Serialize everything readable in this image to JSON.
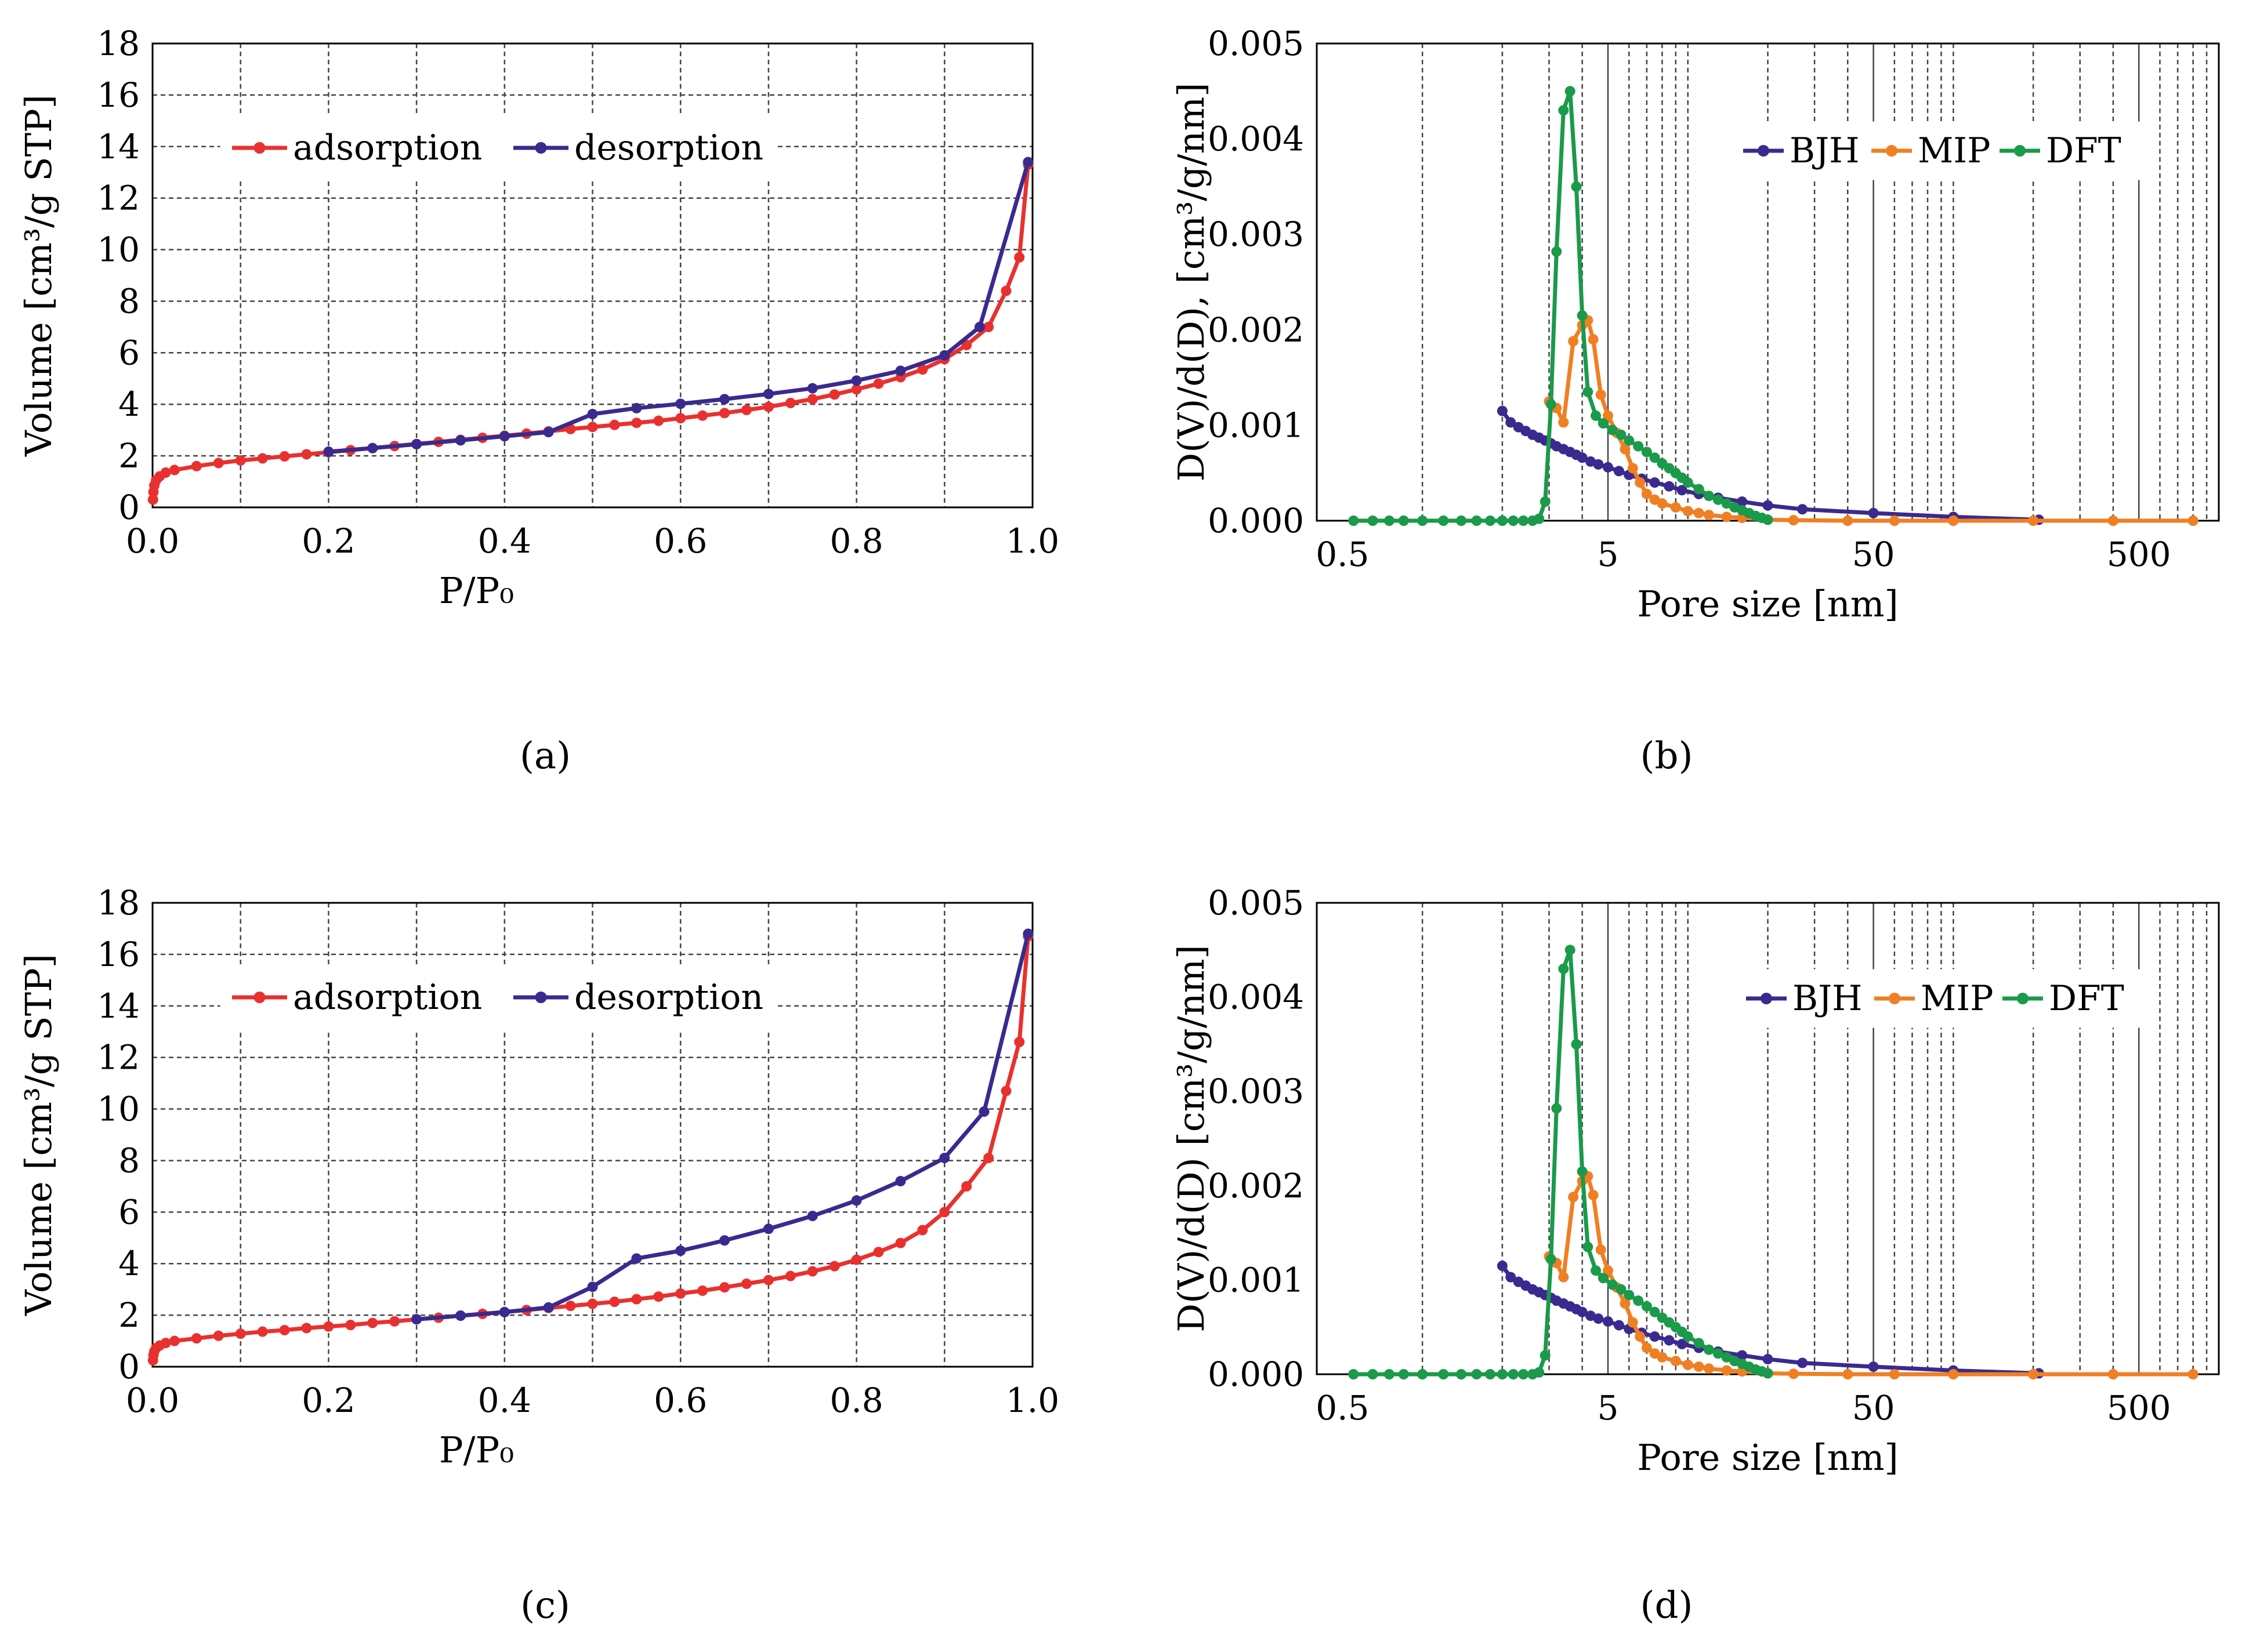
{
  "colors": {
    "adsorption": "#e8312f",
    "desorption": "#3a2a8f",
    "BJH": "#3a2a8f",
    "MIP": "#f07f24",
    "DFT": "#1a9a4a"
  },
  "chart_data": [
    {
      "panel": "a",
      "caption": "(a)",
      "type": "line",
      "xlabel": "P/P₀",
      "ylabel": "Volume [cm³/g STP]",
      "xlim": [
        0.0,
        1.0
      ],
      "ylim": [
        0,
        18
      ],
      "xticks": [
        "0.0",
        "0.2",
        "0.4",
        "0.6",
        "0.8",
        "1.0"
      ],
      "yticks": [
        "0",
        "2",
        "4",
        "6",
        "8",
        "10",
        "12",
        "14",
        "16",
        "18"
      ],
      "legend": [
        "adsorption",
        "desorption"
      ],
      "series": [
        {
          "name": "adsorption",
          "x": [
            0.0005,
            0.001,
            0.002,
            0.004,
            0.008,
            0.015,
            0.025,
            0.05,
            0.075,
            0.1,
            0.125,
            0.15,
            0.175,
            0.2,
            0.225,
            0.25,
            0.275,
            0.3,
            0.325,
            0.35,
            0.375,
            0.4,
            0.425,
            0.45,
            0.475,
            0.5,
            0.525,
            0.55,
            0.575,
            0.6,
            0.625,
            0.65,
            0.675,
            0.7,
            0.725,
            0.75,
            0.775,
            0.8,
            0.825,
            0.85,
            0.875,
            0.9,
            0.925,
            0.95,
            0.97,
            0.985,
            0.995
          ],
          "y": [
            0.3,
            0.6,
            0.85,
            1.05,
            1.2,
            1.35,
            1.45,
            1.6,
            1.72,
            1.82,
            1.9,
            1.98,
            2.06,
            2.14,
            2.22,
            2.3,
            2.38,
            2.46,
            2.54,
            2.62,
            2.7,
            2.78,
            2.86,
            2.95,
            3.04,
            3.12,
            3.2,
            3.28,
            3.36,
            3.46,
            3.56,
            3.66,
            3.78,
            3.9,
            4.05,
            4.2,
            4.38,
            4.58,
            4.8,
            5.05,
            5.35,
            5.75,
            6.3,
            7.0,
            8.4,
            9.7,
            13.3
          ]
        },
        {
          "name": "desorption",
          "x": [
            0.2,
            0.25,
            0.3,
            0.35,
            0.4,
            0.45,
            0.5,
            0.55,
            0.6,
            0.65,
            0.7,
            0.75,
            0.8,
            0.85,
            0.9,
            0.94,
            0.995
          ],
          "y": [
            2.16,
            2.3,
            2.45,
            2.6,
            2.76,
            2.92,
            3.62,
            3.85,
            4.02,
            4.2,
            4.4,
            4.62,
            4.92,
            5.3,
            5.9,
            7.0,
            13.4
          ]
        }
      ]
    },
    {
      "panel": "b",
      "caption": "(b)",
      "type": "line",
      "xscale": "log",
      "xlabel": "Pore size [nm]",
      "ylabel": "D(V)/d(D), [cm³/g/nm]",
      "xlim": [
        0.4,
        1000
      ],
      "ylim": [
        0,
        0.005
      ],
      "xticks": [
        "0.5",
        "5",
        "50",
        "500"
      ],
      "yticks": [
        "0.000",
        "0.001",
        "0.002",
        "0.003",
        "0.004",
        "0.005"
      ],
      "legend": [
        "BJH",
        "MIP",
        "DFT"
      ],
      "series": [
        {
          "name": "BJH",
          "x": [
            2.0,
            2.15,
            2.3,
            2.45,
            2.6,
            2.75,
            2.9,
            3.05,
            3.2,
            3.4,
            3.6,
            3.8,
            4.0,
            4.3,
            4.6,
            5.0,
            5.5,
            6.0,
            6.7,
            7.5,
            8.5,
            9.5,
            11,
            13,
            16,
            20,
            27,
            50,
            100,
            210
          ],
          "y": [
            0.00115,
            0.00103,
            0.00098,
            0.00094,
            0.0009,
            0.00087,
            0.00084,
            0.00081,
            0.00078,
            0.00075,
            0.00072,
            0.00069,
            0.00066,
            0.00062,
            0.00059,
            0.00056,
            0.00052,
            0.00048,
            0.00044,
            0.0004,
            0.00036,
            0.00032,
            0.00028,
            0.00024,
            0.0002,
            0.00016,
            0.00012,
            8e-05,
            4e-05,
            1e-05
          ]
        },
        {
          "name": "MIP",
          "x": [
            3.0,
            3.2,
            3.4,
            3.7,
            4.0,
            4.2,
            4.4,
            4.7,
            5.0,
            5.4,
            5.8,
            6.2,
            6.6,
            7.0,
            7.5,
            8.0,
            9.0,
            10,
            11,
            12,
            14,
            16,
            20,
            25,
            40,
            60,
            100,
            200,
            400,
            800
          ],
          "y": [
            0.00125,
            0.00118,
            0.00103,
            0.00188,
            0.00205,
            0.0021,
            0.0019,
            0.00132,
            0.0011,
            0.00092,
            0.00075,
            0.00055,
            0.0004,
            0.00028,
            0.00022,
            0.00018,
            0.00014,
            0.0001,
            8e-05,
            6e-05,
            4e-05,
            3e-05,
            1e-05,
            5e-06,
            0.0,
            0.0,
            0.0,
            0.0,
            0.0,
            0.0
          ]
        },
        {
          "name": "DFT",
          "x": [
            0.55,
            0.65,
            0.75,
            0.85,
            1.0,
            1.2,
            1.4,
            1.6,
            1.8,
            2.0,
            2.2,
            2.4,
            2.6,
            2.75,
            2.9,
            3.05,
            3.2,
            3.4,
            3.6,
            3.8,
            4.0,
            4.2,
            4.5,
            4.8,
            5.2,
            5.6,
            6.0,
            6.5,
            7.0,
            7.5,
            8.0,
            8.5,
            9.0,
            9.5,
            10,
            11,
            12,
            13,
            14,
            15,
            16,
            17,
            18,
            19,
            20
          ],
          "y": [
            0,
            0,
            0,
            0,
            0,
            0,
            0,
            0,
            0,
            0,
            0,
            0,
            0,
            2e-05,
            0.0002,
            0.00122,
            0.00282,
            0.0043,
            0.0045,
            0.0035,
            0.00215,
            0.00135,
            0.0011,
            0.00102,
            0.00095,
            0.0009,
            0.00084,
            0.00078,
            0.00072,
            0.00066,
            0.0006,
            0.00055,
            0.0005,
            0.00045,
            0.0004,
            0.00033,
            0.00026,
            0.00022,
            0.00018,
            0.00014,
            0.00011,
            8e-05,
            5e-05,
            3e-05,
            1e-05
          ]
        }
      ]
    },
    {
      "panel": "c",
      "caption": "(c)",
      "type": "line",
      "xlabel": "P/P₀",
      "ylabel": "Volume [cm³/g STP]",
      "xlim": [
        0.0,
        1.0
      ],
      "ylim": [
        0,
        18
      ],
      "xticks": [
        "0.0",
        "0.2",
        "0.4",
        "0.6",
        "0.8",
        "1.0"
      ],
      "yticks": [
        "0",
        "2",
        "4",
        "6",
        "8",
        "10",
        "12",
        "14",
        "16",
        "18"
      ],
      "legend": [
        "adsorption",
        "desorption"
      ],
      "series": [
        {
          "name": "adsorption",
          "x": [
            0.0005,
            0.001,
            0.002,
            0.004,
            0.008,
            0.015,
            0.025,
            0.05,
            0.075,
            0.1,
            0.125,
            0.15,
            0.175,
            0.2,
            0.225,
            0.25,
            0.275,
            0.3,
            0.325,
            0.35,
            0.375,
            0.4,
            0.425,
            0.45,
            0.475,
            0.5,
            0.525,
            0.55,
            0.575,
            0.6,
            0.625,
            0.65,
            0.675,
            0.7,
            0.725,
            0.75,
            0.775,
            0.8,
            0.825,
            0.85,
            0.875,
            0.9,
            0.925,
            0.95,
            0.97,
            0.985,
            0.995
          ],
          "y": [
            0.25,
            0.45,
            0.6,
            0.72,
            0.82,
            0.92,
            1.0,
            1.1,
            1.2,
            1.28,
            1.36,
            1.42,
            1.5,
            1.56,
            1.62,
            1.7,
            1.76,
            1.84,
            1.9,
            1.98,
            2.05,
            2.12,
            2.2,
            2.28,
            2.36,
            2.44,
            2.52,
            2.62,
            2.72,
            2.84,
            2.95,
            3.08,
            3.22,
            3.36,
            3.52,
            3.7,
            3.9,
            4.15,
            4.45,
            4.8,
            5.3,
            6.0,
            7.0,
            8.1,
            10.7,
            12.6,
            16.7
          ]
        },
        {
          "name": "desorption",
          "x": [
            0.3,
            0.35,
            0.4,
            0.45,
            0.5,
            0.55,
            0.6,
            0.65,
            0.7,
            0.75,
            0.8,
            0.85,
            0.9,
            0.945,
            0.995
          ],
          "y": [
            1.84,
            1.98,
            2.12,
            2.3,
            3.1,
            4.2,
            4.5,
            4.9,
            5.35,
            5.85,
            6.45,
            7.2,
            8.1,
            9.9,
            16.8
          ]
        }
      ]
    },
    {
      "panel": "d",
      "caption": "(d)",
      "type": "line",
      "xscale": "log",
      "xlabel": "Pore size [nm]",
      "ylabel": "D(V)/d(D) [cm³/g/nm]",
      "xlim": [
        0.4,
        1000
      ],
      "ylim": [
        0,
        0.005
      ],
      "xticks": [
        "0.5",
        "5",
        "50",
        "500"
      ],
      "yticks": [
        "0.000",
        "0.001",
        "0.002",
        "0.003",
        "0.004",
        "0.005"
      ],
      "legend": [
        "BJH",
        "MIP",
        "DFT"
      ],
      "series": [
        {
          "name": "BJH",
          "x": [
            2.0,
            2.15,
            2.3,
            2.45,
            2.6,
            2.75,
            2.9,
            3.05,
            3.2,
            3.4,
            3.6,
            3.8,
            4.0,
            4.3,
            4.6,
            5.0,
            5.5,
            6.0,
            6.7,
            7.5,
            8.5,
            9.5,
            11,
            13,
            16,
            20,
            27,
            50,
            100,
            210
          ],
          "y": [
            0.00115,
            0.00103,
            0.00098,
            0.00094,
            0.0009,
            0.00087,
            0.00084,
            0.00081,
            0.00078,
            0.00075,
            0.00072,
            0.00069,
            0.00066,
            0.00062,
            0.00059,
            0.00056,
            0.00052,
            0.00048,
            0.00044,
            0.0004,
            0.00036,
            0.00032,
            0.00028,
            0.00024,
            0.0002,
            0.00016,
            0.00012,
            8e-05,
            4e-05,
            1e-05
          ]
        },
        {
          "name": "MIP",
          "x": [
            3.0,
            3.2,
            3.4,
            3.7,
            4.0,
            4.2,
            4.4,
            4.7,
            5.0,
            5.4,
            5.8,
            6.2,
            6.6,
            7.0,
            7.5,
            8.0,
            9.0,
            10,
            11,
            12,
            14,
            16,
            20,
            25,
            40,
            60,
            100,
            200,
            400,
            800
          ],
          "y": [
            0.00125,
            0.00118,
            0.00103,
            0.00188,
            0.00205,
            0.0021,
            0.0019,
            0.00132,
            0.0011,
            0.00092,
            0.00075,
            0.00055,
            0.0004,
            0.00028,
            0.00022,
            0.00018,
            0.00014,
            0.0001,
            8e-05,
            6e-05,
            4e-05,
            3e-05,
            1e-05,
            5e-06,
            0.0,
            0.0,
            0.0,
            0.0,
            0.0,
            0.0
          ]
        },
        {
          "name": "DFT",
          "x": [
            0.55,
            0.65,
            0.75,
            0.85,
            1.0,
            1.2,
            1.4,
            1.6,
            1.8,
            2.0,
            2.2,
            2.4,
            2.6,
            2.75,
            2.9,
            3.05,
            3.2,
            3.4,
            3.6,
            3.8,
            4.0,
            4.2,
            4.5,
            4.8,
            5.2,
            5.6,
            6.0,
            6.5,
            7.0,
            7.5,
            8.0,
            8.5,
            9.0,
            9.5,
            10,
            11,
            12,
            13,
            14,
            15,
            16,
            17,
            18,
            19,
            20
          ],
          "y": [
            0,
            0,
            0,
            0,
            0,
            0,
            0,
            0,
            0,
            0,
            0,
            0,
            0,
            2e-05,
            0.0002,
            0.00122,
            0.00282,
            0.0043,
            0.0045,
            0.0035,
            0.00215,
            0.00135,
            0.0011,
            0.00102,
            0.00095,
            0.0009,
            0.00084,
            0.00078,
            0.00072,
            0.00066,
            0.0006,
            0.00055,
            0.0005,
            0.00045,
            0.0004,
            0.00033,
            0.00026,
            0.00022,
            0.00018,
            0.00014,
            0.00011,
            8e-05,
            5e-05,
            3e-05,
            1e-05
          ]
        }
      ]
    }
  ]
}
